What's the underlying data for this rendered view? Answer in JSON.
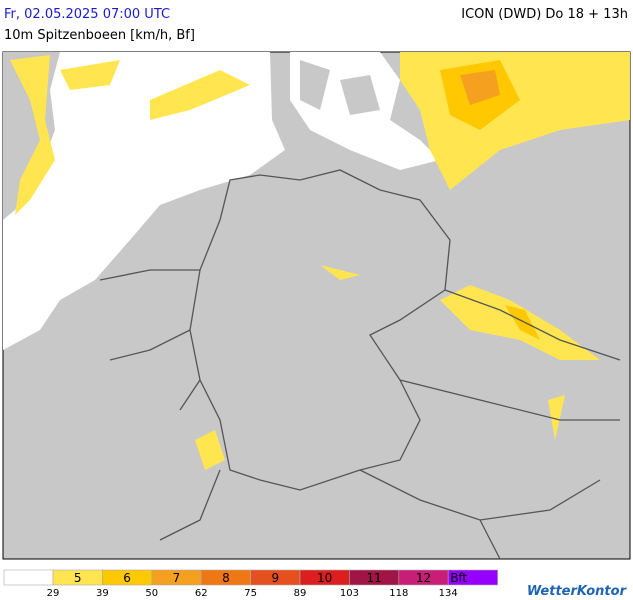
{
  "header": {
    "date": "Fr, 02.05.2025 07:00 UTC",
    "model": "ICON (DWD) Do 18 + 13h",
    "parameter": "10m Spitzenboeen [km/h, Bf]"
  },
  "legend": {
    "classes": [
      {
        "label": "5",
        "color": "#ffe650"
      },
      {
        "label": "6",
        "color": "#ffc800"
      },
      {
        "label": "7",
        "color": "#f5a01e"
      },
      {
        "label": "8",
        "color": "#f07814"
      },
      {
        "label": "9",
        "color": "#e6501e"
      },
      {
        "label": "10",
        "color": "#dc1e1e"
      },
      {
        "label": "11",
        "color": "#a01446"
      },
      {
        "label": "12",
        "color": "#c81e78"
      },
      {
        "label": "Bft",
        "color": "#9600ff"
      }
    ],
    "boundaries": [
      29,
      39,
      50,
      62,
      75,
      89,
      103,
      118,
      134
    ]
  },
  "brand": "WetterKontor"
}
